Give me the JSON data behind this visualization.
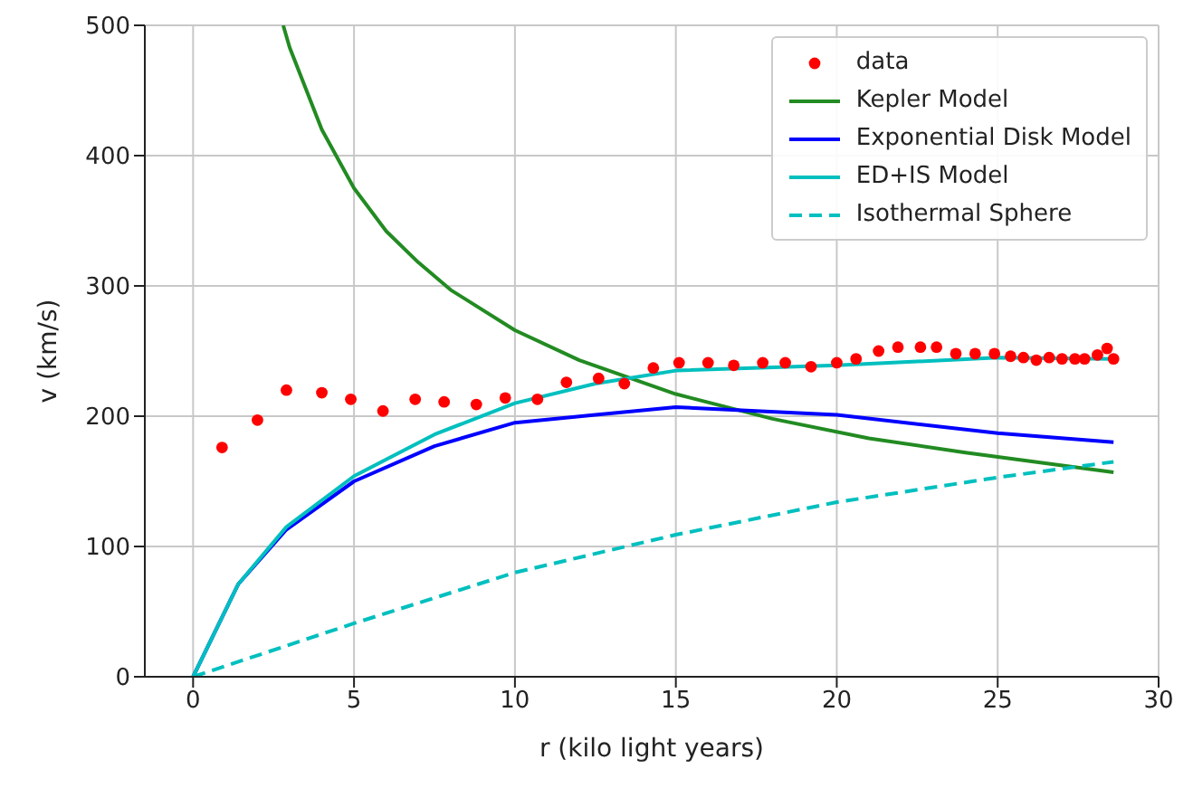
{
  "chart_data": {
    "type": "line",
    "xlabel": "r (kilo light years)",
    "ylabel": "v (km/s)",
    "xlim": [
      -1.5,
      30
    ],
    "xticks": [
      0,
      5,
      10,
      15,
      20,
      25,
      30
    ],
    "ylim": [
      0,
      500
    ],
    "yticks": [
      0,
      100,
      200,
      300,
      400,
      500
    ],
    "grid": true,
    "legend": "top right",
    "series": [
      {
        "name": "data",
        "type": "scatter",
        "marker": "circle",
        "color": "#ff0000",
        "x": [
          0.9,
          2.0,
          2.9,
          4.0,
          4.9,
          5.9,
          6.9,
          7.8,
          8.8,
          9.7,
          10.7,
          11.6,
          12.6,
          13.4,
          14.3,
          15.1,
          16.0,
          16.8,
          17.7,
          18.4,
          19.2,
          20.0,
          20.6,
          21.3,
          21.9,
          22.6,
          23.1,
          23.7,
          24.3,
          24.9,
          25.4,
          25.8,
          26.2,
          26.6,
          27.0,
          27.4,
          27.7,
          28.1,
          28.4,
          28.6
        ],
        "values": [
          176,
          197,
          220,
          218,
          213,
          204,
          213,
          211,
          209,
          214,
          213,
          226,
          229,
          225,
          237,
          241,
          241,
          239,
          241,
          241,
          238,
          241,
          244,
          250,
          253,
          253,
          253,
          248,
          248,
          248,
          246,
          245,
          243,
          245,
          244,
          244,
          244,
          247,
          252,
          244
        ]
      },
      {
        "name": "Kepler Model",
        "type": "line",
        "line_style": "solid",
        "color": "#228b22",
        "x": [
          2.8,
          3,
          4,
          5,
          6,
          7,
          8,
          10,
          12,
          15,
          18,
          21,
          24,
          28.6
        ],
        "values": [
          500,
          483,
          420,
          375,
          342,
          318,
          297,
          266,
          243,
          217,
          198,
          183,
          172,
          157
        ]
      },
      {
        "name": "Exponential Disk Model",
        "type": "line",
        "line_style": "solid",
        "color": "#0000ff",
        "x": [
          0,
          1.4,
          2.9,
          5,
          7.5,
          10,
          12.5,
          15,
          20,
          25,
          28.6
        ],
        "values": [
          0,
          71,
          113,
          150,
          177,
          195,
          201,
          207,
          201,
          187,
          180
        ]
      },
      {
        "name": "ED+IS Model",
        "type": "line",
        "line_style": "solid",
        "color": "#00bfbf",
        "x": [
          0,
          1.4,
          2.9,
          5,
          7.5,
          10,
          12.5,
          15,
          20,
          25,
          28.6
        ],
        "values": [
          0,
          71,
          115,
          154,
          186,
          210,
          225,
          235,
          239,
          245,
          244
        ]
      },
      {
        "name": "Isothermal Sphere",
        "type": "line",
        "line_style": "dashed",
        "color": "#00bfbf",
        "x": [
          0,
          5,
          10,
          15,
          20,
          25,
          28.6
        ],
        "values": [
          0,
          41,
          80,
          109,
          134,
          153,
          165
        ]
      }
    ]
  }
}
